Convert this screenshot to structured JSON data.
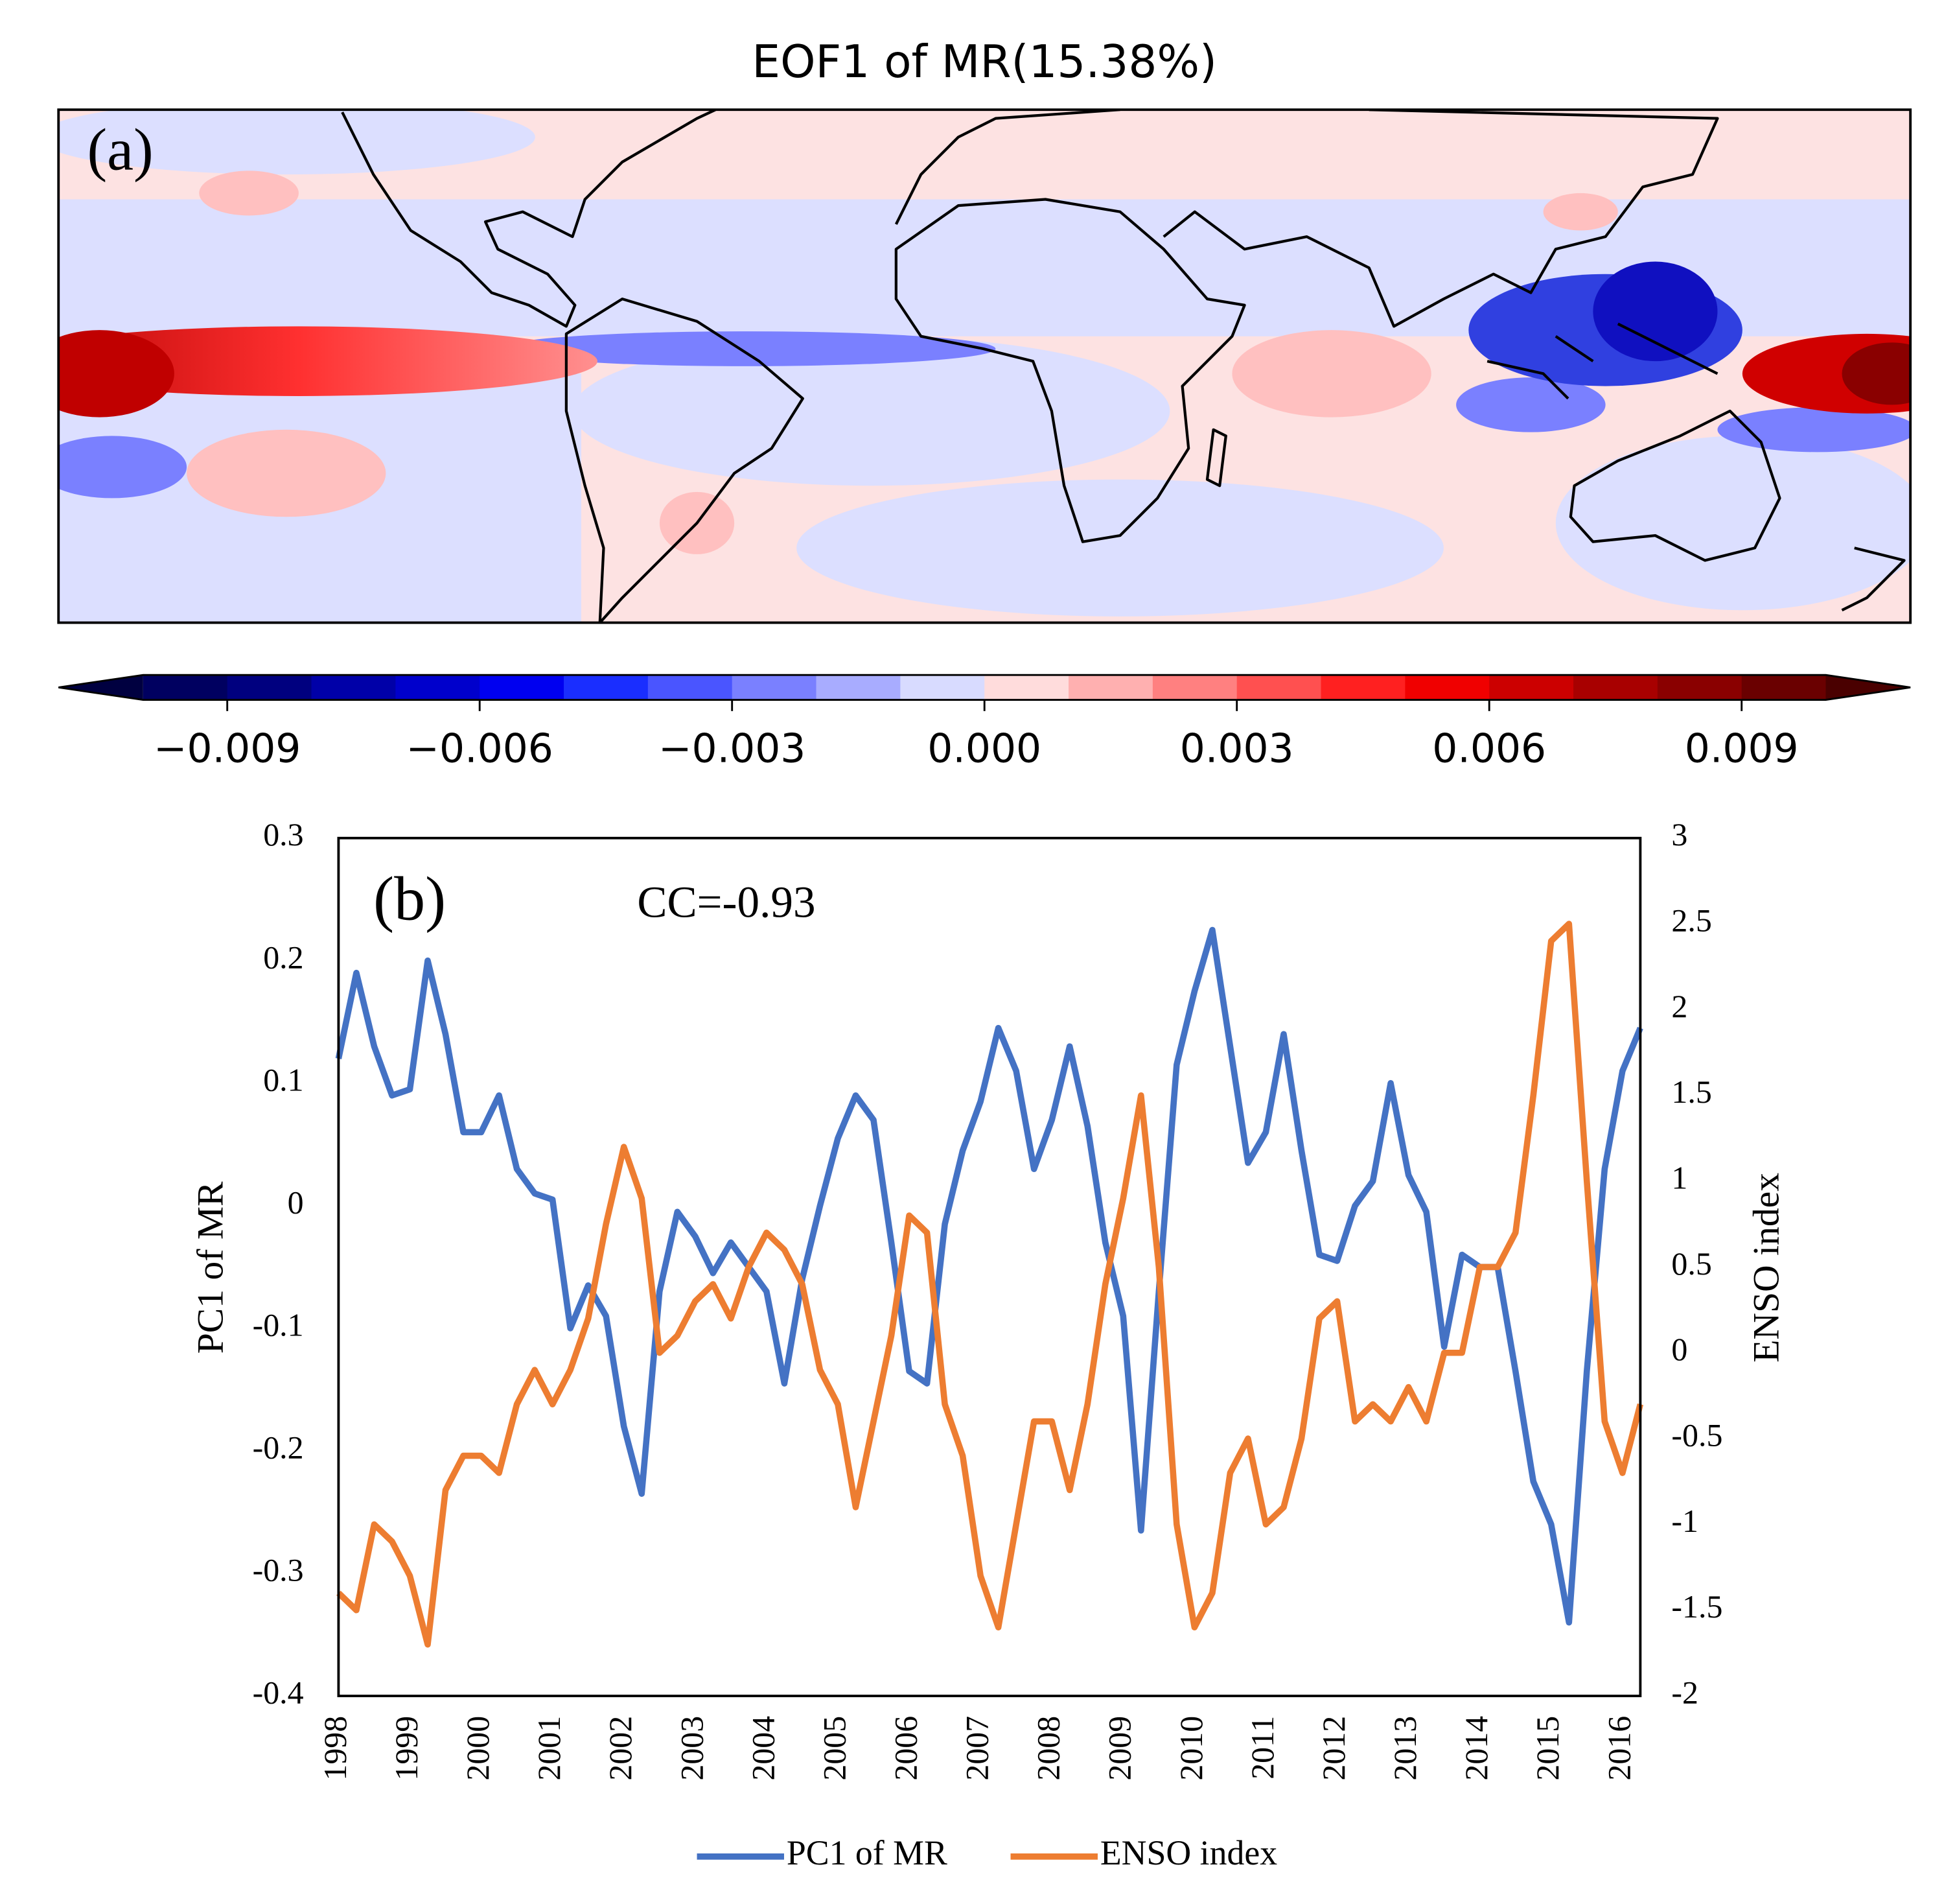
{
  "chart_data": [
    {
      "type": "map",
      "title": "EOF1 of MR(15.38%)",
      "panel_label": "(a)",
      "colorbar": {
        "lim": [
          -0.01,
          0.01
        ],
        "colors": [
          "#000060",
          "#00007f",
          "#0000a8",
          "#0000cc",
          "#0000f0",
          "#1a2eff",
          "#4a55ff",
          "#7a80ff",
          "#a8acff",
          "#d8dbff",
          "#ffdcdc",
          "#ffb0b0",
          "#ff8080",
          "#ff5050",
          "#ff2020",
          "#f00000",
          "#cc0000",
          "#a80000",
          "#8a0000",
          "#6a0000"
        ],
        "under": "#000040",
        "over": "#4a0000",
        "ticks": [
          {
            "value": -0.009,
            "label": "−0.009"
          },
          {
            "value": -0.006,
            "label": "−0.006"
          },
          {
            "value": -0.003,
            "label": "−0.003"
          },
          {
            "value": 0,
            "label": "0.000"
          },
          {
            "value": 0.003,
            "label": "0.003"
          },
          {
            "value": 0.006,
            "label": "0.006"
          },
          {
            "value": 0.009,
            "label": "0.009"
          }
        ]
      }
    },
    {
      "type": "line",
      "panel_label": "(b)",
      "annotation": "CC=-0.93",
      "ylabel": "PC1 of MR",
      "y2label": "ENSO index",
      "categories": [
        "1998",
        null,
        null,
        null,
        "1999",
        null,
        null,
        null,
        "2000",
        null,
        null,
        null,
        "2001",
        null,
        null,
        null,
        "2002",
        null,
        null,
        null,
        "2003",
        null,
        null,
        null,
        "2004",
        null,
        null,
        null,
        "2005",
        null,
        null,
        null,
        "2006",
        null,
        null,
        null,
        "2007",
        null,
        null,
        null,
        "2008",
        null,
        null,
        null,
        "2009",
        null,
        null,
        null,
        "2010",
        null,
        null,
        null,
        "2011",
        null,
        null,
        null,
        "2012",
        null,
        null,
        null,
        "2013",
        null,
        null,
        null,
        "2014",
        null,
        null,
        null,
        "2015",
        null,
        null,
        null,
        "2016",
        null
      ],
      "ylim": [
        -0.4,
        0.3
      ],
      "yticks": [
        0.3,
        0.2,
        0.1,
        0,
        -0.1,
        -0.2,
        -0.3,
        -0.4
      ],
      "y2lim": [
        -2,
        3
      ],
      "y2ticks": [
        3,
        2.5,
        2,
        1.5,
        1,
        0.5,
        0,
        -0.5,
        -1,
        -1.5,
        -2
      ],
      "series": [
        {
          "name": "PC1 of MR",
          "color": "#4472c4",
          "values": [
            0.12,
            0.19,
            0.13,
            0.09,
            0.095,
            0.2,
            0.14,
            0.06,
            0.06,
            0.09,
            0.03,
            0.01,
            0.005,
            -0.1,
            -0.065,
            -0.09,
            -0.18,
            -0.235,
            -0.07,
            -0.005,
            -0.025,
            -0.055,
            -0.03,
            -0.05,
            -0.07,
            -0.145,
            -0.06,
            0.0,
            0.055,
            0.09,
            0.07,
            -0.03,
            -0.135,
            -0.145,
            -0.015,
            0.045,
            0.085,
            0.145,
            0.11,
            0.03,
            0.07,
            0.13,
            0.065,
            -0.03,
            -0.09,
            -0.265,
            -0.07,
            0.115,
            0.175,
            0.225,
            0.13,
            0.035,
            0.06,
            0.14,
            0.045,
            -0.04,
            -0.045,
            0.0,
            0.02,
            0.1,
            0.025,
            -0.005,
            -0.115,
            -0.04,
            -0.05,
            -0.05,
            -0.135,
            -0.225,
            -0.26,
            -0.34,
            -0.135,
            0.03,
            0.11,
            0.145
          ]
        },
        {
          "name": "ENSO index",
          "color": "#ed7d31",
          "axis": "y2",
          "values": [
            -1.4,
            -1.5,
            -1.0,
            -1.1,
            -1.3,
            -1.7,
            -0.8,
            -0.6,
            -0.6,
            -0.7,
            -0.3,
            -0.1,
            -0.3,
            -0.1,
            0.2,
            0.75,
            1.2,
            0.9,
            0.0,
            0.1,
            0.3,
            0.4,
            0.2,
            0.5,
            0.7,
            0.6,
            0.4,
            -0.1,
            -0.3,
            -0.9,
            -0.4,
            0.1,
            0.8,
            0.7,
            -0.3,
            -0.6,
            -1.3,
            -1.6,
            -1.0,
            -0.4,
            -0.4,
            -0.8,
            -0.3,
            0.4,
            0.9,
            1.5,
            0.5,
            -1.0,
            -1.6,
            -1.4,
            -0.7,
            -0.5,
            -1.0,
            -0.9,
            -0.5,
            0.2,
            0.3,
            -0.4,
            -0.3,
            -0.4,
            -0.2,
            -0.4,
            0.0,
            0.0,
            0.5,
            0.5,
            0.7,
            1.5,
            2.4,
            2.5,
            1.0,
            -0.4,
            -0.7,
            -0.3
          ]
        }
      ]
    }
  ]
}
